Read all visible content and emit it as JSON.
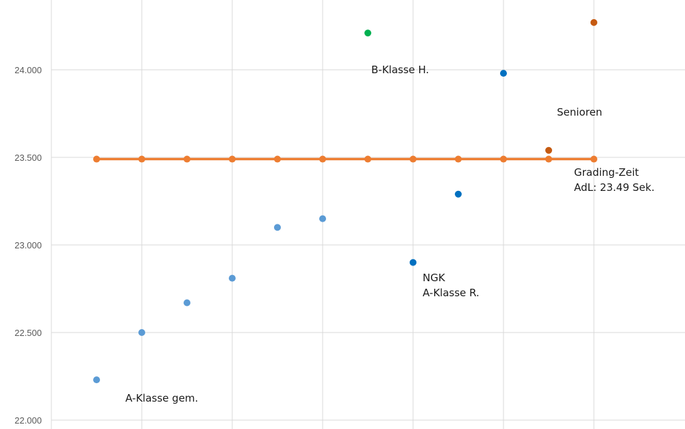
{
  "chart_data": {
    "type": "scatter",
    "title": "",
    "xlabel": "",
    "ylabel": "",
    "ylim": [
      22.0,
      24.5
    ],
    "xlim": [
      0,
      14
    ],
    "yticks": [
      "22.000",
      "22.500",
      "23.000",
      "23.500",
      "24.000"
    ],
    "ytick_values": [
      22.0,
      22.5,
      23.0,
      23.5,
      24.0
    ],
    "grid": true,
    "legend": "none",
    "series": [
      {
        "kind": "line",
        "color": "#ED7D31",
        "x": [
          1,
          2,
          3,
          4,
          5,
          6,
          7,
          8,
          9,
          10,
          11,
          12
        ],
        "values": [
          23.49,
          23.49,
          23.49,
          23.49,
          23.49,
          23.49,
          23.49,
          23.49,
          23.49,
          23.49,
          23.49,
          23.49
        ]
      },
      {
        "kind": "scatter",
        "color": "#5B9BD5",
        "x": [
          1,
          2,
          3,
          4,
          5,
          6
        ],
        "values": [
          22.23,
          22.5,
          22.67,
          22.81,
          23.1,
          23.15
        ]
      },
      {
        "kind": "scatter",
        "color": "#0070C0",
        "x": [
          8,
          9,
          10
        ],
        "values": [
          22.9,
          23.29,
          23.98
        ]
      },
      {
        "kind": "scatter",
        "color": "#00B050",
        "x": [
          7
        ],
        "values": [
          24.21
        ]
      },
      {
        "kind": "scatter",
        "color": "#C55A11",
        "x": [
          11,
          12
        ],
        "values": [
          23.54,
          24.27
        ]
      }
    ],
    "annotations": [
      {
        "lines": [
          "A-Klasse gem."
        ]
      },
      {
        "lines": [
          "B-Klasse H."
        ]
      },
      {
        "lines": [
          "NGK",
          "A-Klasse R."
        ]
      },
      {
        "lines": [
          "Senioren"
        ]
      },
      {
        "lines": [
          "Grading-Zeit",
          "AdL: 23.49 Sek."
        ]
      }
    ]
  }
}
